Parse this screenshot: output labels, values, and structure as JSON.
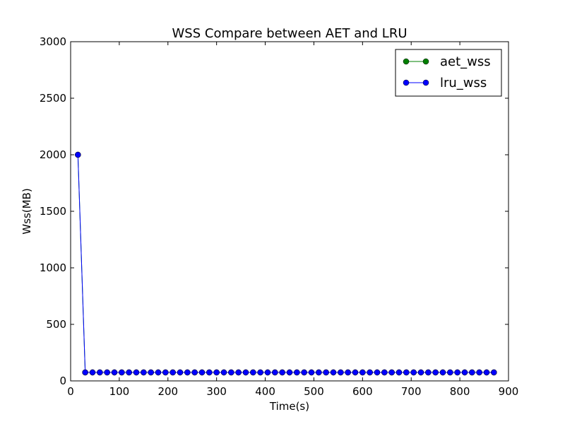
{
  "chart_data": {
    "type": "line",
    "title": "WSS Compare between AET and LRU",
    "xlabel": "Time(s)",
    "ylabel": "Wss(MB)",
    "xlim": [
      0,
      900
    ],
    "ylim": [
      0,
      3000
    ],
    "xticks": [
      "0",
      "100",
      "200",
      "300",
      "400",
      "500",
      "600",
      "700",
      "800",
      "900"
    ],
    "yticks": [
      "0",
      "500",
      "1000",
      "1500",
      "2000",
      "2500",
      "3000"
    ],
    "grid": false,
    "legend_position": "top-right",
    "series": [
      {
        "name": "aet_wss",
        "color": "#008000",
        "x": [
          15,
          30,
          45,
          60,
          75,
          90,
          105,
          120,
          135,
          150,
          165,
          180,
          195,
          210,
          225,
          240,
          255,
          270,
          285,
          300,
          315,
          330,
          345,
          360,
          375,
          390,
          405,
          420,
          435,
          450,
          465,
          480,
          495,
          510,
          525,
          540,
          555,
          570,
          585,
          600,
          615,
          630,
          645,
          660,
          675,
          690,
          705,
          720,
          735,
          750,
          765,
          780,
          795,
          810,
          825,
          840,
          855,
          870
        ],
        "values": [
          2000,
          75,
          75,
          75,
          75,
          75,
          75,
          75,
          75,
          75,
          75,
          75,
          75,
          75,
          75,
          75,
          75,
          75,
          75,
          75,
          75,
          75,
          75,
          75,
          75,
          75,
          75,
          75,
          75,
          75,
          75,
          75,
          75,
          75,
          75,
          75,
          75,
          75,
          75,
          75,
          75,
          75,
          75,
          75,
          75,
          75,
          75,
          75,
          75,
          75,
          75,
          75,
          75,
          75,
          75,
          75,
          75,
          75
        ]
      },
      {
        "name": "lru_wss",
        "color": "#0000ff",
        "x": [
          15,
          30,
          45,
          60,
          75,
          90,
          105,
          120,
          135,
          150,
          165,
          180,
          195,
          210,
          225,
          240,
          255,
          270,
          285,
          300,
          315,
          330,
          345,
          360,
          375,
          390,
          405,
          420,
          435,
          450,
          465,
          480,
          495,
          510,
          525,
          540,
          555,
          570,
          585,
          600,
          615,
          630,
          645,
          660,
          675,
          690,
          705,
          720,
          735,
          750,
          765,
          780,
          795,
          810,
          825,
          840,
          855,
          870
        ],
        "values": [
          2000,
          75,
          75,
          75,
          75,
          75,
          75,
          75,
          75,
          75,
          75,
          75,
          75,
          75,
          75,
          75,
          75,
          75,
          75,
          75,
          75,
          75,
          75,
          75,
          75,
          75,
          75,
          75,
          75,
          75,
          75,
          75,
          75,
          75,
          75,
          75,
          75,
          75,
          75,
          75,
          75,
          75,
          75,
          75,
          75,
          75,
          75,
          75,
          75,
          75,
          75,
          75,
          75,
          75,
          75,
          75,
          75,
          75
        ]
      }
    ]
  }
}
